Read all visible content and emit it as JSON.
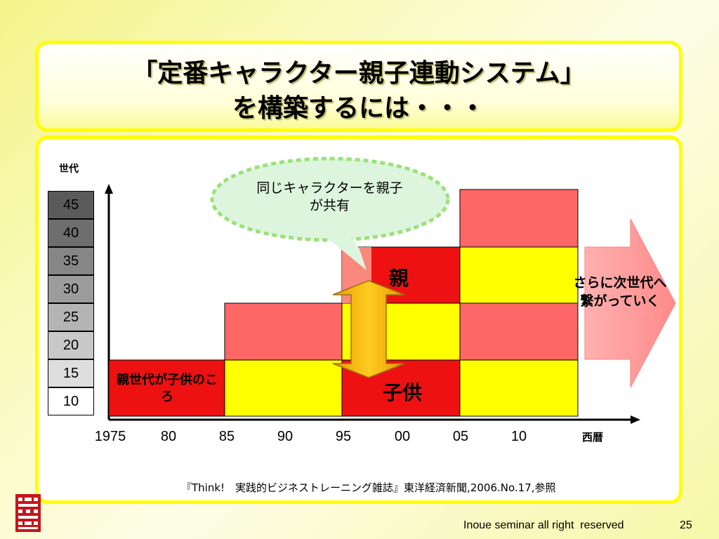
{
  "title": {
    "line1": "「定番キャラクター親子連動システム」",
    "line2": "を構築するには・・・"
  },
  "generation": {
    "label": "世代",
    "cells": [
      {
        "value": "45",
        "color": "#5a5a5a"
      },
      {
        "value": "40",
        "color": "#6e6e6e"
      },
      {
        "value": "35",
        "color": "#868686"
      },
      {
        "value": "30",
        "color": "#9c9c9c"
      },
      {
        "value": "25",
        "color": "#b4b4b4"
      },
      {
        "value": "20",
        "color": "#c8c8c8"
      },
      {
        "value": "15",
        "color": "#dedede"
      },
      {
        "value": "10",
        "color": "#ffffff"
      }
    ]
  },
  "x_axis": {
    "label": "西暦",
    "ticks": [
      "1975",
      "80",
      "85",
      "90",
      "95",
      "00",
      "05",
      "10"
    ]
  },
  "blocks": {
    "parent_label": "親",
    "child_label": "子供",
    "parent_era_label": "親世代が子供のころ",
    "colors": {
      "red": "#ee1111",
      "pink": "#ff6666",
      "yellow": "#ffff00"
    }
  },
  "callout": {
    "text": "同じキャラクターを親子が共有"
  },
  "side_arrow": {
    "text": "さらに次世代へ繋がっていく",
    "color": "#ff9a9a"
  },
  "source": "『Think!　実践的ビジネストレーニング雑誌』東洋経済新聞,2006.No.17,参照",
  "footer": {
    "copyright": "Inoue seminar all right  reserved",
    "page": "25"
  }
}
